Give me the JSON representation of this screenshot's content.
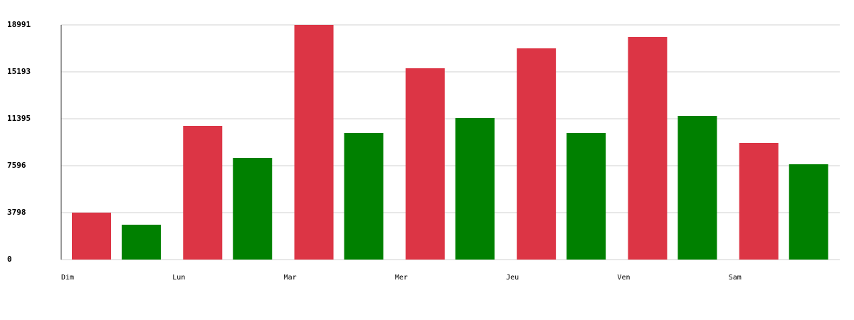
{
  "chart_data": {
    "type": "bar",
    "categories": [
      "Dim",
      "Lun",
      "Mar",
      "Mer",
      "Jeu",
      "Ven",
      "Sam"
    ],
    "series": [
      {
        "color": "#dc3545",
        "values": [
          3798,
          10819,
          18991,
          15480,
          17092,
          18012,
          9438
        ]
      },
      {
        "color": "#008000",
        "values": [
          2820,
          8229,
          10243,
          11452,
          10243,
          11625,
          7711
        ]
      }
    ],
    "ylim": [
      0,
      18991
    ],
    "yticks": [
      0,
      3798,
      7596,
      11395,
      15193,
      18991
    ],
    "grid": true
  }
}
